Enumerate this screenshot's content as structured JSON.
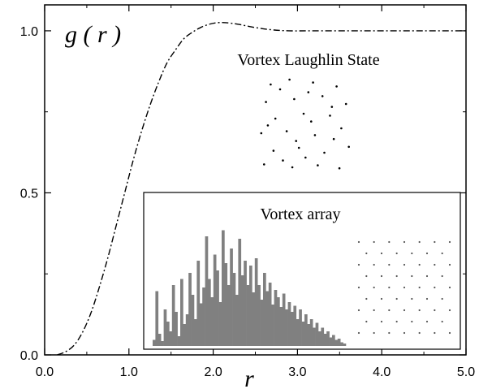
{
  "chart_data": {
    "type": "line",
    "title": "",
    "xlabel": "r",
    "ylabel": "g ( r )",
    "xlim": [
      0.0,
      5.0
    ],
    "ylim": [
      0.0,
      1.08
    ],
    "x_ticks": [
      "0.0",
      "1.0",
      "2.0",
      "3.0",
      "4.0",
      "5.0"
    ],
    "y_ticks": [
      "0.0",
      "0.5",
      "1.0"
    ],
    "grid": false,
    "series": [
      {
        "line_style": "dash-dot",
        "color": "#000000",
        "points": [
          [
            0.15,
            0.0
          ],
          [
            0.25,
            0.01
          ],
          [
            0.35,
            0.03
          ],
          [
            0.45,
            0.07
          ],
          [
            0.55,
            0.13
          ],
          [
            0.65,
            0.21
          ],
          [
            0.75,
            0.3
          ],
          [
            0.85,
            0.4
          ],
          [
            0.95,
            0.5
          ],
          [
            1.05,
            0.6
          ],
          [
            1.15,
            0.69
          ],
          [
            1.25,
            0.77
          ],
          [
            1.35,
            0.84
          ],
          [
            1.45,
            0.9
          ],
          [
            1.55,
            0.94
          ],
          [
            1.65,
            0.975
          ],
          [
            1.75,
            0.995
          ],
          [
            1.85,
            1.01
          ],
          [
            1.95,
            1.02
          ],
          [
            2.05,
            1.025
          ],
          [
            2.15,
            1.025
          ],
          [
            2.3,
            1.02
          ],
          [
            2.5,
            1.01
          ],
          [
            2.7,
            1.003
          ],
          [
            2.9,
            1.0
          ],
          [
            3.2,
            1.0
          ],
          [
            3.6,
            1.0
          ],
          [
            4.0,
            1.0
          ],
          [
            4.5,
            1.0
          ],
          [
            5.0,
            1.0
          ]
        ]
      }
    ],
    "annotations": {
      "laughlin_label": "Vortex Laughlin State",
      "array_label": "Vortex array"
    },
    "inset_histogram": {
      "x_range": [
        1.3,
        3.5
      ],
      "bar_color": "#808080",
      "values": [
        0.05,
        0.45,
        0.1,
        0.04,
        0.3,
        0.2,
        0.12,
        0.5,
        0.28,
        0.08,
        0.55,
        0.18,
        0.26,
        0.6,
        0.42,
        0.22,
        0.7,
        0.35,
        0.48,
        0.9,
        0.55,
        0.4,
        0.75,
        0.62,
        0.36,
        0.95,
        0.68,
        0.5,
        0.8,
        0.6,
        0.42,
        0.88,
        0.58,
        0.7,
        0.5,
        0.66,
        0.44,
        0.72,
        0.5,
        0.38,
        0.6,
        0.45,
        0.52,
        0.34,
        0.46,
        0.4,
        0.32,
        0.43,
        0.3,
        0.36,
        0.28,
        0.33,
        0.22,
        0.3,
        0.2,
        0.26,
        0.18,
        0.22,
        0.15,
        0.19,
        0.12,
        0.15,
        0.1,
        0.12,
        0.07,
        0.09,
        0.05,
        0.06,
        0.03,
        0.02
      ]
    },
    "laughlin_dots": [
      [
        0.15,
        0.1
      ],
      [
        0.35,
        0.05
      ],
      [
        0.6,
        0.08
      ],
      [
        0.85,
        0.12
      ],
      [
        0.1,
        0.28
      ],
      [
        0.4,
        0.25
      ],
      [
        0.7,
        0.22
      ],
      [
        0.95,
        0.3
      ],
      [
        0.2,
        0.45
      ],
      [
        0.5,
        0.4
      ],
      [
        0.78,
        0.42
      ],
      [
        0.05,
        0.6
      ],
      [
        0.32,
        0.58
      ],
      [
        0.62,
        0.62
      ],
      [
        0.9,
        0.55
      ],
      [
        0.18,
        0.78
      ],
      [
        0.45,
        0.75
      ],
      [
        0.72,
        0.8
      ],
      [
        0.98,
        0.74
      ],
      [
        0.08,
        0.92
      ],
      [
        0.38,
        0.95
      ],
      [
        0.65,
        0.93
      ],
      [
        0.88,
        0.96
      ],
      [
        0.25,
        0.15
      ],
      [
        0.55,
        0.18
      ],
      [
        0.8,
        0.33
      ],
      [
        0.12,
        0.52
      ],
      [
        0.42,
        0.68
      ],
      [
        0.58,
        0.48
      ],
      [
        0.82,
        0.66
      ],
      [
        0.28,
        0.88
      ],
      [
        0.52,
        0.85
      ]
    ],
    "array_grid": {
      "rows": 9,
      "cols": 7
    }
  }
}
